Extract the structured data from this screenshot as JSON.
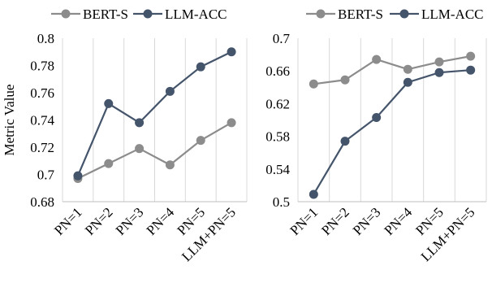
{
  "chart_data": [
    {
      "type": "line",
      "title": "",
      "xlabel": "",
      "ylabel": "Metric Value",
      "categories": [
        "PN=1",
        "PN=2",
        "PN=3",
        "PN=4",
        "PN=5",
        "LLM+PN=5"
      ],
      "ylim": [
        0.68,
        0.8
      ],
      "yticks": [
        "0.68",
        "0.7",
        "0.72",
        "0.74",
        "0.76",
        "0.78",
        "0.8"
      ],
      "grid": "vertical",
      "legend": "top",
      "series": [
        {
          "name": "BERT-S",
          "color": "#8c8c8c",
          "values": [
            0.697,
            0.708,
            0.719,
            0.707,
            0.725,
            0.738
          ]
        },
        {
          "name": "LLM-ACC",
          "color": "#44546a",
          "values": [
            0.699,
            0.752,
            0.738,
            0.761,
            0.779,
            0.79
          ]
        }
      ]
    },
    {
      "type": "line",
      "title": "",
      "xlabel": "",
      "ylabel": "",
      "categories": [
        "PN=1",
        "PN=2",
        "PN=3",
        "PN=4",
        "PN=5",
        "LLM+PN=5"
      ],
      "ylim": [
        0.5,
        0.7
      ],
      "yticks": [
        "0.5",
        "0.54",
        "0.58",
        "0.62",
        "0.66",
        "0.7"
      ],
      "grid": "vertical",
      "legend": "top",
      "series": [
        {
          "name": "BERT-S",
          "color": "#8c8c8c",
          "values": [
            0.644,
            0.649,
            0.674,
            0.662,
            0.671,
            0.678
          ]
        },
        {
          "name": "LLM-ACC",
          "color": "#44546a",
          "values": [
            0.509,
            0.574,
            0.603,
            0.646,
            0.658,
            0.661
          ]
        }
      ]
    }
  ]
}
